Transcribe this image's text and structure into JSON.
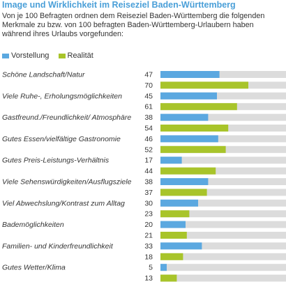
{
  "header": {
    "title": "Image und Wirklichkeit im Reiseziel Baden-Württemberg",
    "subtitle": "Von je 100 Befragten ordnen dem Reiseziel Baden-Württemberg die folgenden Merkmale zu bzw. von 100 befragten Baden-Württemberg-Urlaubern haben während ihres Urlaubs vorgefunden:"
  },
  "colors": {
    "vorstellung": "#5ba8e0",
    "realitaet": "#a8c42a",
    "track": "#dcdcdc",
    "title": "#4a9fd8"
  },
  "chart_data": {
    "type": "bar",
    "orientation": "horizontal",
    "title": "Image und Wirklichkeit im Reiseziel Baden-Württemberg",
    "xlim": [
      0,
      100
    ],
    "grid": false,
    "legend": "top-left",
    "categories": [
      "Schöne Landschaft/Natur",
      "Viele Ruhe-, Erholungsmöglichkeiten",
      "Gastfreund./Freundlichkeit/ Atmosphäre",
      "Gutes Essen/vielfältige Gastronomie",
      "Gutes Preis-Leistungs-Verhältnis",
      "Viele Sehenswürdigkeiten/Ausflugsziele",
      "Viel Abwechslung/Kontrast zum Alltag",
      "Bademöglichkeiten",
      "Familien- und Kinderfreundlichkeit",
      "Gutes Wetter/Klima"
    ],
    "series": [
      {
        "name": "Vorstellung",
        "values": [
          47,
          45,
          38,
          46,
          17,
          38,
          30,
          20,
          33,
          5
        ]
      },
      {
        "name": "Realität",
        "values": [
          70,
          61,
          54,
          52,
          44,
          37,
          23,
          21,
          18,
          13
        ]
      }
    ]
  }
}
